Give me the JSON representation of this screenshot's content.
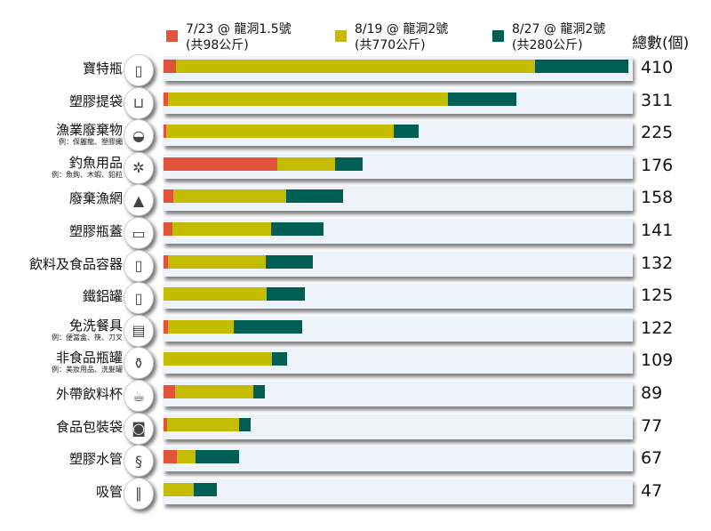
{
  "chart_data": {
    "type": "bar",
    "orientation": "horizontal",
    "stacked": true,
    "total_header": "總數(個)",
    "xlim": [
      0,
      410
    ],
    "colors": [
      "#e2533b",
      "#c4bc00",
      "#005f55"
    ],
    "series": [
      {
        "name": "7/23 @ 龍洞1.5號",
        "note": "(共98公斤)",
        "values": [
          11,
          4,
          2,
          100,
          9,
          8,
          4,
          0,
          4,
          0,
          10,
          3,
          12,
          0
        ]
      },
      {
        "name": "8/19 @ 龍洞2號",
        "note": "(共770公斤)",
        "values": [
          317,
          247,
          201,
          51,
          99,
          87,
          86,
          91,
          58,
          96,
          69,
          64,
          16,
          27
        ]
      },
      {
        "name": "8/27 @ 龍洞2號",
        "note": "(共280公斤)",
        "values": [
          82,
          60,
          22,
          25,
          50,
          46,
          42,
          34,
          60,
          13,
          10,
          10,
          39,
          20
        ]
      }
    ],
    "categories": [
      {
        "label": "寶特瓶",
        "sub": "",
        "icon": "bottle-icon",
        "glyph": "▯",
        "total": "410"
      },
      {
        "label": "塑膠提袋",
        "sub": "",
        "icon": "plastic-bag-icon",
        "glyph": "⊔",
        "total": "311"
      },
      {
        "label": "漁業廢棄物",
        "sub": "例：保麗龍、塑膠繩",
        "icon": "fishing-waste-icon",
        "glyph": "◒",
        "total": "225"
      },
      {
        "label": "釣魚用品",
        "sub": "例：魚鉤、木蝦、鉛粒",
        "icon": "fishing-lure-icon",
        "glyph": "✲",
        "total": "176"
      },
      {
        "label": "廢棄漁網",
        "sub": "",
        "icon": "fishing-net-icon",
        "glyph": "▲",
        "total": "158"
      },
      {
        "label": "塑膠瓶蓋",
        "sub": "",
        "icon": "bottle-cap-icon",
        "glyph": "▭",
        "total": "141"
      },
      {
        "label": "飲料及食品容器",
        "sub": "",
        "icon": "jug-icon",
        "glyph": "▯",
        "total": "132"
      },
      {
        "label": "鐵鋁罐",
        "sub": "",
        "icon": "can-icon",
        "glyph": "▯",
        "total": "125"
      },
      {
        "label": "免洗餐具",
        "sub": "例：便當盒、筷、刀叉",
        "icon": "lunchbox-icon",
        "glyph": "▤",
        "total": "122"
      },
      {
        "label": "非食品瓶罐",
        "sub": "例：美妝用品、洗髮罐",
        "icon": "cosmetics-bottle-icon",
        "glyph": "⚱",
        "total": "109"
      },
      {
        "label": "外帶飲料杯",
        "sub": "",
        "icon": "coffee-cup-icon",
        "glyph": "☕",
        "total": "89"
      },
      {
        "label": "食品包裝袋",
        "sub": "",
        "icon": "snack-bag-icon",
        "glyph": "◙",
        "total": "77"
      },
      {
        "label": "塑膠水管",
        "sub": "",
        "icon": "hose-icon",
        "glyph": "§",
        "total": "67"
      },
      {
        "label": "吸管",
        "sub": "",
        "icon": "straw-icon",
        "glyph": "∥",
        "total": "47"
      }
    ]
  }
}
